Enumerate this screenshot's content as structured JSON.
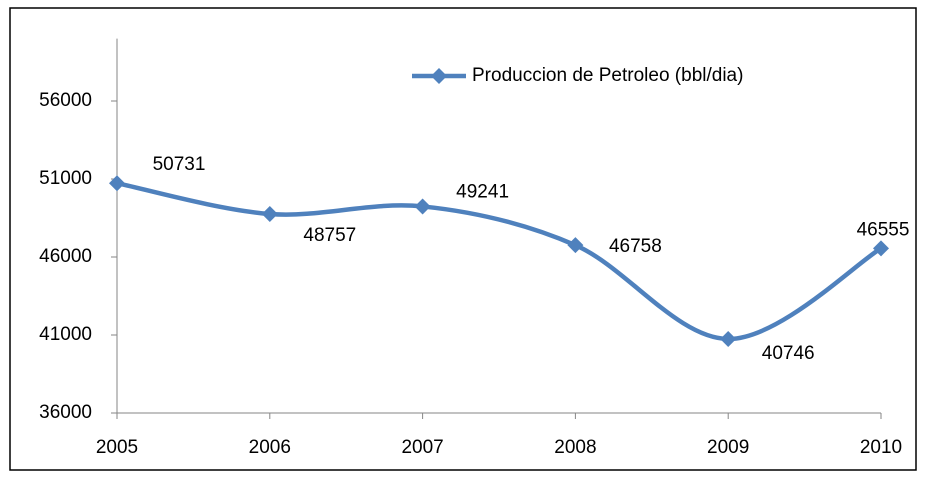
{
  "chart_data": {
    "type": "line",
    "categories": [
      "2005",
      "2006",
      "2007",
      "2008",
      "2009",
      "2010"
    ],
    "series": [
      {
        "name": "Produccion de Petroleo (bbl/dia)",
        "color": "#4f81bd",
        "values": [
          50731,
          48757,
          49241,
          46758,
          40746,
          46555
        ]
      }
    ],
    "ylim": [
      36000,
      60000
    ],
    "yticks": [
      36000,
      41000,
      46000,
      51000,
      56000
    ],
    "grid": false,
    "smooth": true,
    "markers": "diamond",
    "data_labels": true
  }
}
